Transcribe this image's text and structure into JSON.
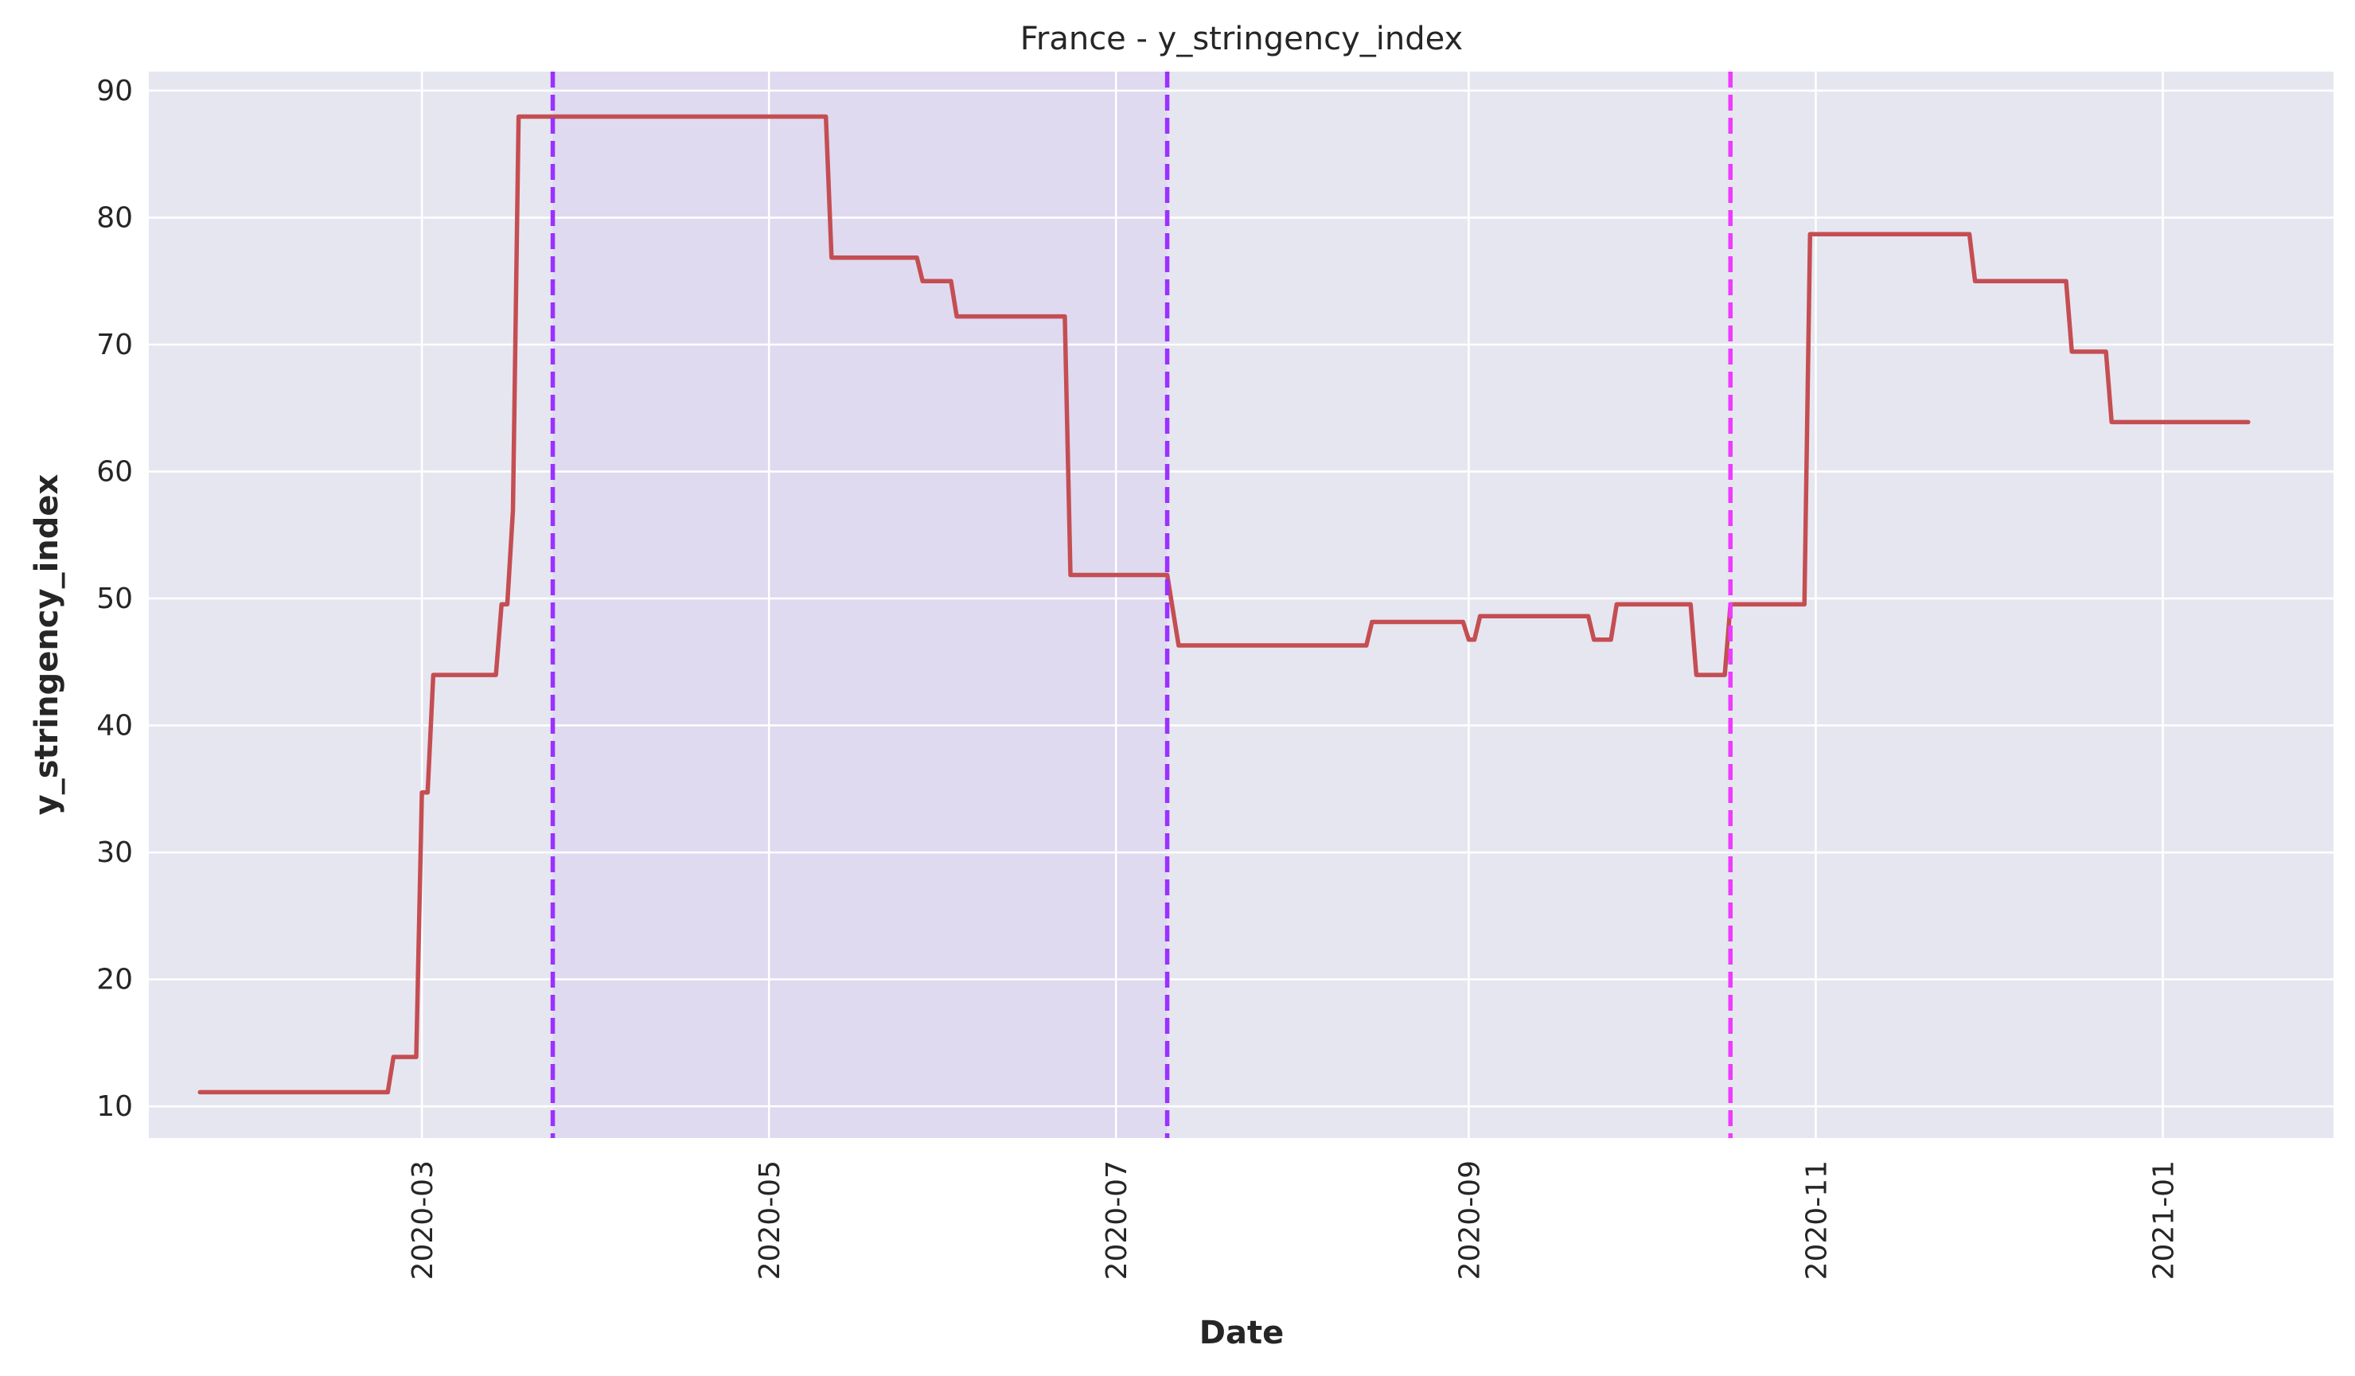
{
  "chart_data": {
    "type": "line",
    "title": "France - y_stringency_index",
    "xlabel": "Date",
    "ylabel": "y_stringency_index",
    "x_ticks": [
      "2020-03",
      "2020-05",
      "2020-07",
      "2020-09",
      "2020-11",
      "2021-01"
    ],
    "y_ticks": [
      10,
      20,
      30,
      40,
      50,
      60,
      70,
      80,
      90
    ],
    "xlim": [
      "2020-01-13",
      "2021-01-31"
    ],
    "ylim": [
      7.5,
      91.5
    ],
    "grid": true,
    "background_color": "#e6e6f0",
    "line_color": "#c44e52",
    "shaded_period": {
      "start": "2020-03-24",
      "end": "2020-07-10",
      "color": "#d9cff0"
    },
    "vlines": [
      {
        "date": "2020-03-24",
        "color": "#9b30ff",
        "style": "dashed"
      },
      {
        "date": "2020-07-10",
        "color": "#9b30ff",
        "style": "dashed"
      },
      {
        "date": "2020-10-17",
        "color": "#ee3bff",
        "style": "dashed"
      }
    ],
    "series": [
      {
        "x": [
          "2020-01-22",
          "2020-02-24",
          "2020-02-25",
          "2020-02-29",
          "2020-03-01",
          "2020-03-02",
          "2020-03-03",
          "2020-03-04",
          "2020-03-14",
          "2020-03-15",
          "2020-03-16",
          "2020-03-17",
          "2020-03-18",
          "2020-05-11",
          "2020-05-12",
          "2020-05-27",
          "2020-05-28",
          "2020-06-02",
          "2020-06-03",
          "2020-06-22",
          "2020-06-23",
          "2020-07-10",
          "2020-07-12",
          "2020-08-14",
          "2020-08-15",
          "2020-08-31",
          "2020-09-01",
          "2020-09-02",
          "2020-09-03",
          "2020-09-22",
          "2020-09-23",
          "2020-09-26",
          "2020-09-27",
          "2020-10-10",
          "2020-10-11",
          "2020-10-16",
          "2020-10-17",
          "2020-10-30",
          "2020-10-31",
          "2020-11-28",
          "2020-11-29",
          "2020-12-15",
          "2020-12-16",
          "2020-12-22",
          "2020-12-23",
          "2021-01-16"
        ],
        "y": [
          11.11,
          11.11,
          13.89,
          13.89,
          34.72,
          34.72,
          43.98,
          43.98,
          43.98,
          49.54,
          49.54,
          56.94,
          87.96,
          87.96,
          76.85,
          76.85,
          75.0,
          75.0,
          72.22,
          72.22,
          51.85,
          51.85,
          46.3,
          46.3,
          48.15,
          48.15,
          46.76,
          46.76,
          48.61,
          48.61,
          46.76,
          46.76,
          49.54,
          49.54,
          43.98,
          43.98,
          49.54,
          49.54,
          78.7,
          78.7,
          75.0,
          75.0,
          69.44,
          69.44,
          63.89,
          63.89
        ]
      }
    ]
  }
}
